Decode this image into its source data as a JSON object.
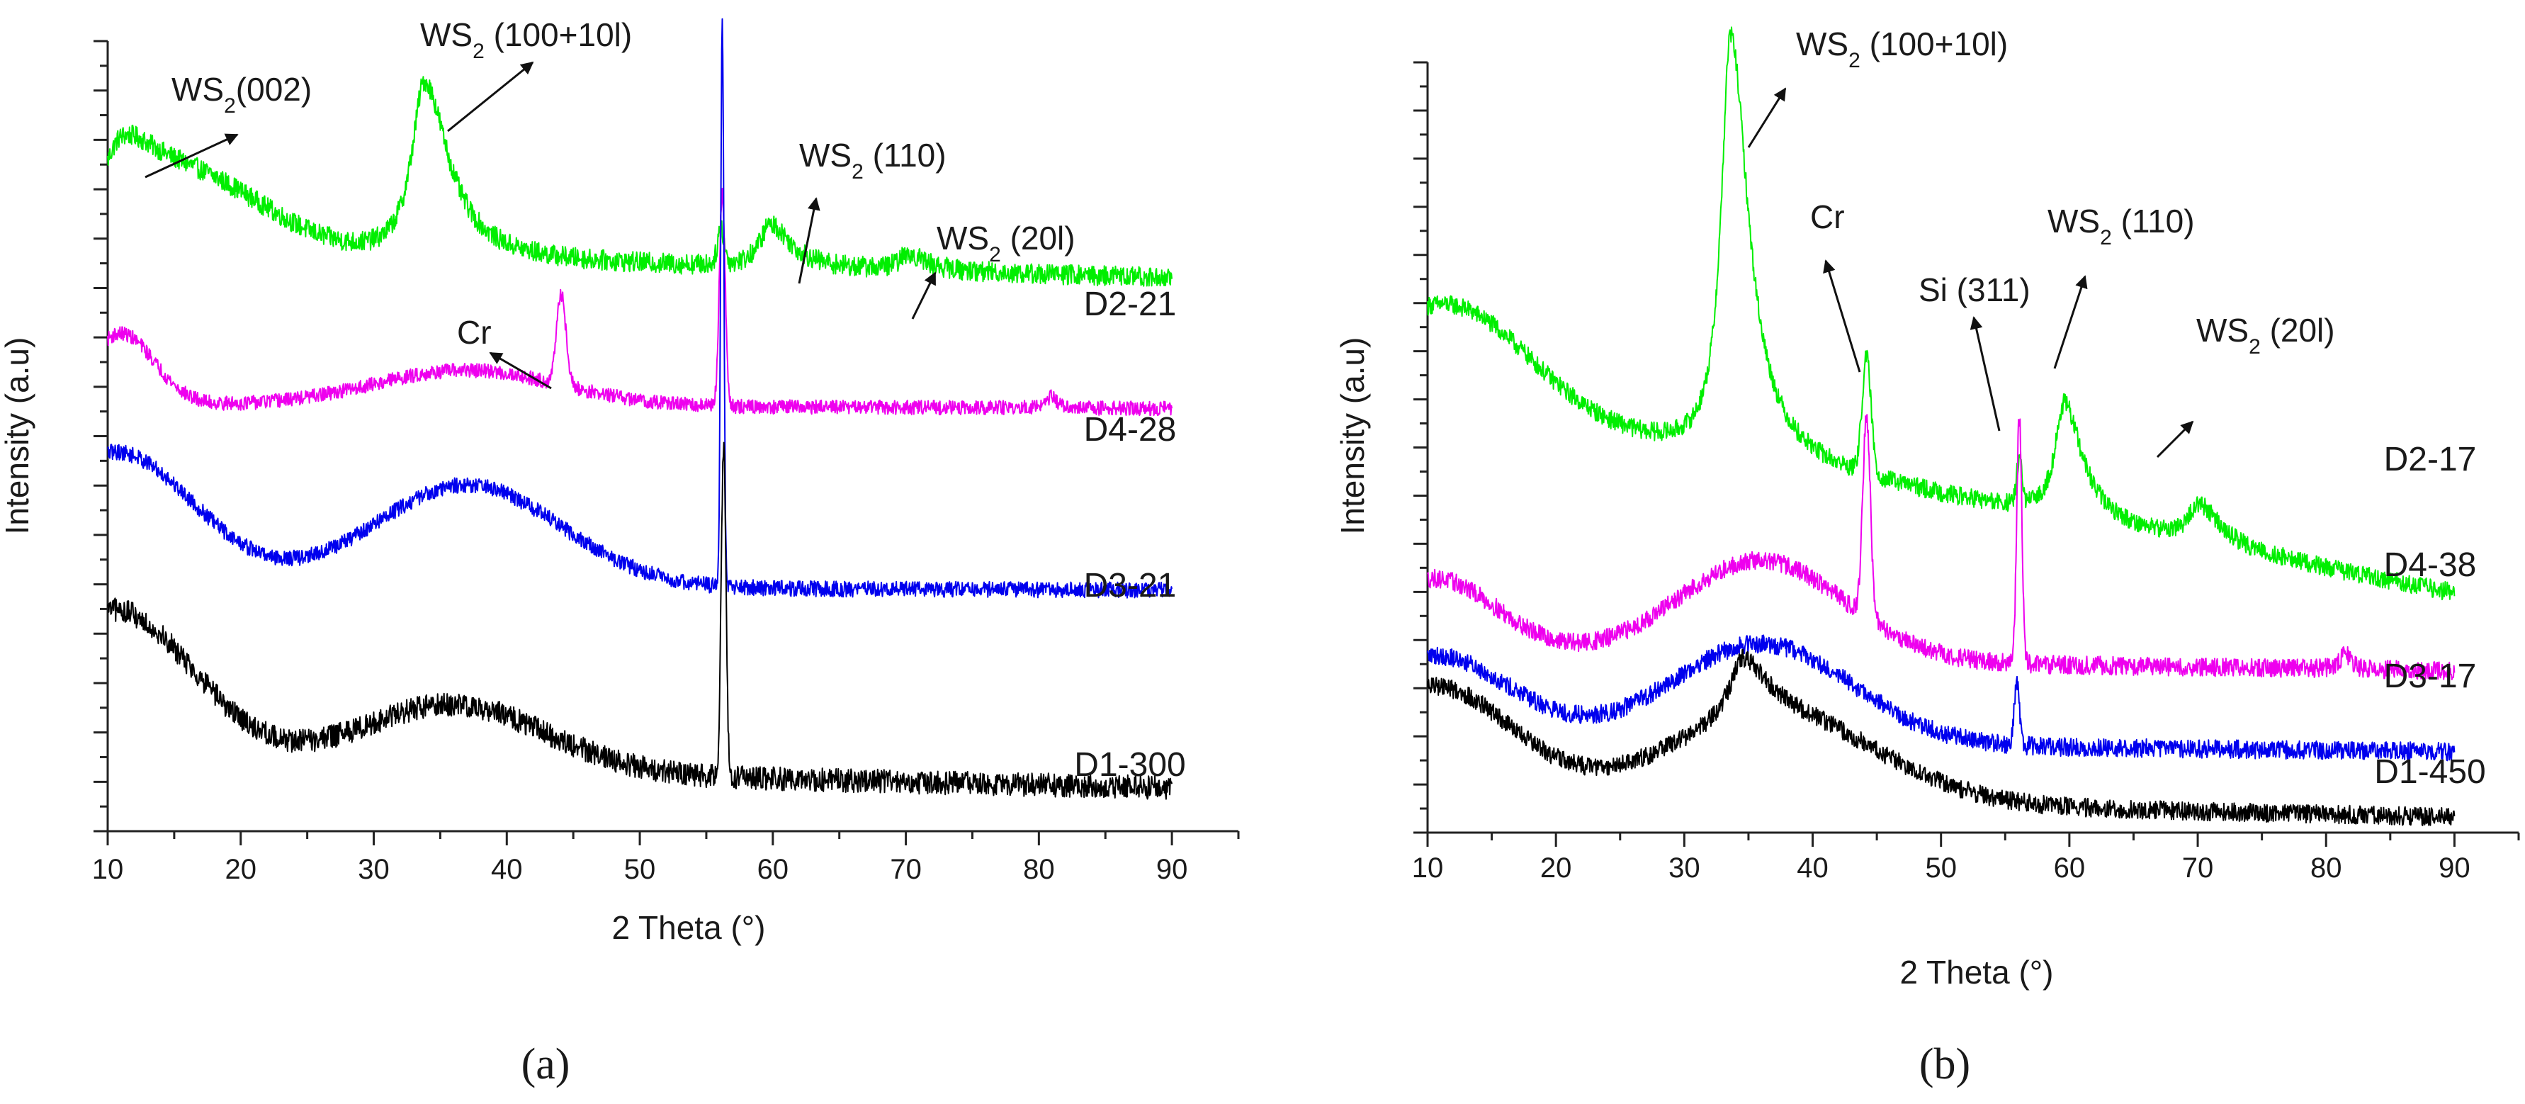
{
  "chart_data": [
    {
      "panel": "(a)",
      "panel_name": "a",
      "type": "line",
      "xlabel": "2 Theta (°)",
      "ylabel": "Intensity (a.u)",
      "xlim": [
        10,
        95
      ],
      "ylim": [
        0,
        10
      ],
      "xticks": [
        "10",
        "20",
        "30",
        "40",
        "50",
        "60",
        "70",
        "80",
        "90"
      ],
      "series": [
        {
          "name": "D2-21",
          "color": "#00ee00",
          "baseline": 7.3,
          "end": 7.0,
          "peaks": [
            [
              11,
              0.85,
              2.6
            ],
            [
              33.8,
              2.25,
              1.7
            ],
            [
              56.1,
              0.45,
              0.25
            ],
            [
              59.8,
              0.55,
              1.4
            ],
            [
              70.2,
              0.2,
              1.3
            ]
          ],
          "humps": [
            [
              16,
              0.9,
              6
            ]
          ],
          "noise": 0.13
        },
        {
          "name": "D4-28",
          "color": "#ee00ee",
          "baseline": 5.4,
          "end": 5.35,
          "peaks": [
            [
              44.1,
              1.15,
              0.35
            ],
            [
              56.2,
              2.7,
              0.22
            ],
            [
              81,
              0.15,
              0.6
            ]
          ],
          "humps": [
            [
              37,
              0.45,
              7
            ],
            [
              11,
              0.9,
              2.5
            ]
          ],
          "noise": 0.09
        },
        {
          "name": "D3-21",
          "color": "#0000ee",
          "baseline": 3.1,
          "end": 3.05,
          "peaks": [
            [
              56.2,
              7.2,
              0.12
            ]
          ],
          "humps": [
            [
              37,
              1.3,
              7
            ],
            [
              10.5,
              1.7,
              6
            ]
          ],
          "noise": 0.1
        },
        {
          "name": "D1-300",
          "color": "#000000",
          "baseline": 0.85,
          "end": 0.55,
          "peaks": [
            [
              56.3,
              4.2,
              0.18
            ]
          ],
          "humps": [
            [
              36,
              0.85,
              7
            ],
            [
              10.5,
              1.95,
              6
            ]
          ],
          "noise": 0.15
        }
      ],
      "curve_labels": [
        "D2-21",
        "D4-28",
        "D3-21",
        "D1-300"
      ],
      "annotations": [
        {
          "base": "WS",
          "sub": "2",
          "rest": "(002)"
        },
        {
          "base": "WS",
          "sub": "2",
          "rest": " (100+10l)"
        },
        {
          "base": "WS",
          "sub": "2",
          "rest": " (110)"
        },
        {
          "base": "WS",
          "sub": "2",
          "rest": " (20l)"
        },
        {
          "base": "Cr",
          "sub": "",
          "rest": ""
        }
      ]
    },
    {
      "panel": "(b)",
      "panel_name": "b",
      "type": "line",
      "xlabel": "2 Theta (°)",
      "ylabel": "Intensity (a.u)",
      "xlim": [
        10,
        95
      ],
      "ylim": [
        0,
        10
      ],
      "xticks": [
        "10",
        "20",
        "30",
        "40",
        "50",
        "60",
        "70",
        "80",
        "90"
      ],
      "series": [
        {
          "name": "D2-17",
          "color": "#00ee00",
          "baseline": 5.6,
          "end": 3.1,
          "peaks": [
            [
              33.6,
              5.5,
              1.3
            ],
            [
              44.2,
              1.5,
              0.35
            ],
            [
              56.1,
              0.6,
              0.2
            ],
            [
              59.6,
              1.5,
              1.3
            ],
            [
              70.1,
              0.5,
              1.5
            ]
          ],
          "humps": [
            [
              12,
              1.3,
              6
            ]
          ],
          "noise": 0.12
        },
        {
          "name": "D4-38",
          "color": "#ee00ee",
          "baseline": 2.3,
          "end": 2.1,
          "peaks": [
            [
              44.2,
              2.6,
              0.3
            ],
            [
              56.1,
              3.2,
              0.2
            ],
            [
              81.5,
              0.2,
              0.7
            ]
          ],
          "humps": [
            [
              36,
              1.3,
              6.5
            ],
            [
              10.5,
              1.0,
              5
            ]
          ],
          "noise": 0.12
        },
        {
          "name": "D3-17",
          "color": "#0000ee",
          "baseline": 1.2,
          "end": 1.05,
          "peaks": [
            [
              55.9,
              0.8,
              0.2
            ]
          ],
          "humps": [
            [
              36,
              1.3,
              7
            ],
            [
              10.5,
              1.1,
              6
            ]
          ],
          "noise": 0.12
        },
        {
          "name": "D1-450",
          "color": "#000000",
          "baseline": 0.5,
          "end": 0.2,
          "peaks": [
            [
              34.5,
              0.8,
              1.8
            ]
          ],
          "humps": [
            [
              37,
              1.1,
              8
            ],
            [
              10.5,
              1.4,
              6
            ]
          ],
          "noise": 0.12
        }
      ],
      "curve_labels": [
        "D2-17",
        "D4-38",
        "D3-17",
        "D1-450"
      ],
      "annotations": [
        {
          "base": "WS",
          "sub": "2",
          "rest": " (100+10l)"
        },
        {
          "base": "Cr",
          "sub": "",
          "rest": ""
        },
        {
          "base": "Si (311)",
          "sub": "",
          "rest": ""
        },
        {
          "base": "WS",
          "sub": "2",
          "rest": " (110)"
        },
        {
          "base": "WS",
          "sub": "2",
          "rest": " (20l)"
        }
      ]
    }
  ]
}
